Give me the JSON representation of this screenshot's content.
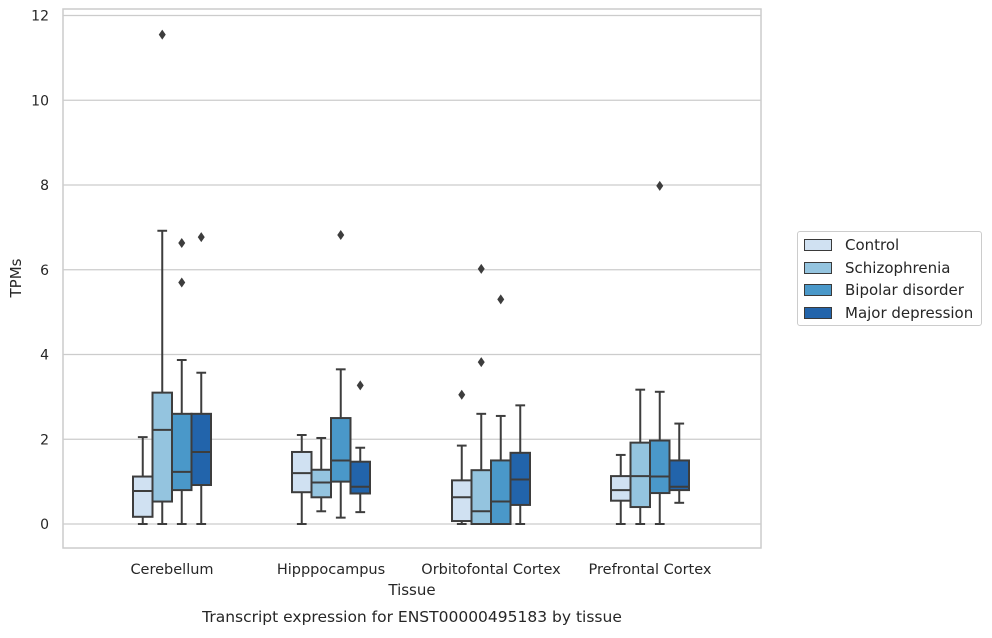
{
  "chart_data": {
    "type": "box",
    "title": "Transcript expression for ENST00000495183 by tissue",
    "xlabel": "Tissue",
    "ylabel": "TPMs",
    "ylim": [
      -0.55,
      12.2
    ],
    "yticks": [
      0,
      2,
      4,
      6,
      8,
      10,
      12
    ],
    "grid": "horizontal",
    "legend_position": "right",
    "categories": [
      "Cerebellum",
      "Hipppocampus",
      "Orbitofontal Cortex",
      "Prefrontal Cortex"
    ],
    "series": [
      {
        "name": "Control",
        "color": "#d0e1f2",
        "boxes": [
          {
            "whislo": 0.0,
            "q1": 0.17,
            "med": 0.78,
            "q3": 1.12,
            "whishi": 2.05,
            "fliers": []
          },
          {
            "whislo": 0.0,
            "q1": 0.75,
            "med": 1.2,
            "q3": 1.7,
            "whishi": 2.1,
            "fliers": []
          },
          {
            "whislo": 0.0,
            "q1": 0.07,
            "med": 0.63,
            "q3": 1.03,
            "whishi": 1.85,
            "fliers": [
              3.05
            ]
          },
          {
            "whislo": 0.0,
            "q1": 0.55,
            "med": 0.8,
            "q3": 1.13,
            "whishi": 1.63,
            "fliers": []
          }
        ]
      },
      {
        "name": "Schizophrenia",
        "color": "#94c4df",
        "boxes": [
          {
            "whislo": 0.0,
            "q1": 0.53,
            "med": 2.22,
            "q3": 3.1,
            "whishi": 6.92,
            "fliers": [
              11.55
            ]
          },
          {
            "whislo": 0.3,
            "q1": 0.63,
            "med": 0.98,
            "q3": 1.28,
            "whishi": 2.03,
            "fliers": []
          },
          {
            "whislo": 0.0,
            "q1": 0.0,
            "med": 0.3,
            "q3": 1.27,
            "whishi": 2.6,
            "fliers": [
              3.82,
              6.02
            ]
          },
          {
            "whislo": 0.0,
            "q1": 0.4,
            "med": 1.13,
            "q3": 1.92,
            "whishi": 3.17,
            "fliers": []
          }
        ]
      },
      {
        "name": "Bipolar disorder",
        "color": "#4a98c9",
        "boxes": [
          {
            "whislo": 0.0,
            "q1": 0.8,
            "med": 1.23,
            "q3": 2.6,
            "whishi": 3.87,
            "fliers": [
              5.7,
              6.63
            ]
          },
          {
            "whislo": 0.15,
            "q1": 1.0,
            "med": 1.5,
            "q3": 2.5,
            "whishi": 3.65,
            "fliers": [
              6.82
            ]
          },
          {
            "whislo": 0.0,
            "q1": 0.0,
            "med": 0.53,
            "q3": 1.5,
            "whishi": 2.55,
            "fliers": [
              5.3
            ]
          },
          {
            "whislo": 0.0,
            "q1": 0.73,
            "med": 1.12,
            "q3": 1.97,
            "whishi": 3.12,
            "fliers": [
              7.98
            ]
          }
        ]
      },
      {
        "name": "Major depression",
        "color": "#2264ab",
        "boxes": [
          {
            "whislo": 0.0,
            "q1": 0.92,
            "med": 1.7,
            "q3": 2.6,
            "whishi": 3.57,
            "fliers": [
              6.77
            ]
          },
          {
            "whislo": 0.28,
            "q1": 0.72,
            "med": 0.88,
            "q3": 1.47,
            "whishi": 1.8,
            "fliers": [
              3.27
            ]
          },
          {
            "whislo": 0.0,
            "q1": 0.45,
            "med": 1.05,
            "q3": 1.68,
            "whishi": 2.8,
            "fliers": []
          },
          {
            "whislo": 0.5,
            "q1": 0.8,
            "med": 0.88,
            "q3": 1.5,
            "whishi": 2.37,
            "fliers": []
          }
        ]
      }
    ]
  }
}
